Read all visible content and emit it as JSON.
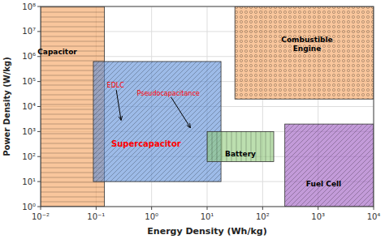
{
  "chart_data": {
    "type": "region",
    "log": true,
    "grid": true,
    "x_label": "Energy Density (Wh/kg)",
    "y_label": "Power Density (W/kg)",
    "xlim": [
      0.01,
      10000
    ],
    "ylim": [
      1,
      100000000
    ],
    "xticks": [
      {
        "value": 0.01,
        "label": "10⁻²"
      },
      {
        "value": 0.1,
        "label": "10⁻¹"
      },
      {
        "value": 1,
        "label": "10⁰"
      },
      {
        "value": 10,
        "label": "10¹"
      },
      {
        "value": 100,
        "label": "10²"
      },
      {
        "value": 1000,
        "label": "10³"
      },
      {
        "value": 10000,
        "label": "10⁴"
      }
    ],
    "yticks": [
      {
        "value": 1,
        "label": "10⁰"
      },
      {
        "value": 10,
        "label": "10¹"
      },
      {
        "value": 100,
        "label": "10²"
      },
      {
        "value": 1000,
        "label": "10³"
      },
      {
        "value": 10000,
        "label": "10⁴"
      },
      {
        "value": 100000,
        "label": "10⁵"
      },
      {
        "value": 1000000,
        "label": "10⁶"
      },
      {
        "value": 10000000,
        "label": "10⁷"
      },
      {
        "value": 100000000,
        "label": "10⁸"
      }
    ],
    "regions": [
      {
        "label": "Capacitor",
        "x1": 0.01,
        "x2": 0.14125375446227545,
        "y1": 1,
        "y2": 100000000,
        "label_x": 0.0199526231496888,
        "label_y": 1584893.1924611141,
        "color": "#f5a05a",
        "label_color": "black"
      },
      {
        "label": "Combustible\nEngine",
        "x1": 31.622776601683793,
        "x2": 10000,
        "y1": 19952.62314968879,
        "y2": 100000000,
        "label_x": 630.957344480193,
        "label_y": 3162277.6601683795,
        "color": "#f5a05a",
        "label_color": "black"
      },
      {
        "label": "Supercapacitor",
        "x1": 0.08912509381337455,
        "x2": 17.78279410038923,
        "y1": 10,
        "y2": 630957.344480193,
        "label_x": 0.7943282347242815,
        "label_y": 316.22776601683796,
        "color": "#5b8dd9",
        "label_color": "red"
      },
      {
        "label": "Battery",
        "x1": 10,
        "x2": 158.48931924611142,
        "y1": 63.09573444801933,
        "y2": 1000,
        "label_x": 39.810717055349734,
        "label_y": 125.89254117941675,
        "color": "#90c97a",
        "label_color": "black"
      },
      {
        "label": "Fuel Cell",
        "x1": 251.18864315095806,
        "x2": 10000,
        "y1": 1,
        "y2": 1995.2623149688789,
        "label_x": 1258.9254117941675,
        "label_y": 7.943282347242816,
        "color": "#9b59c0",
        "label_color": "black"
      }
    ],
    "annotations": [
      {
        "text": "EDLC",
        "x": 0.28183829312644537,
        "y": 2818.382931264455,
        "text_x": 0.22387211385683395,
        "text_y": 70794.57843841374,
        "color": "red"
      },
      {
        "text": "Pseudocapacitance",
        "x": 5.011872336272722,
        "y": 1412.537544622754,
        "text_x": 1.9952623149688795,
        "text_y": 35481.33892335753,
        "color": "red"
      }
    ]
  }
}
